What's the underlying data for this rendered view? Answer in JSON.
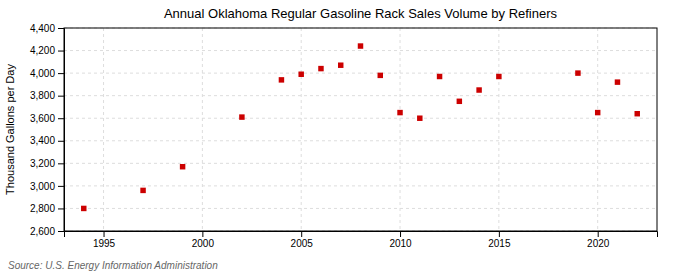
{
  "chart_data": {
    "type": "scatter",
    "title": "Annual Oklahoma Regular Gasoline Rack Sales Volume by Refiners",
    "ylabel": "Thousand Gallons per Day",
    "annotation": "Source: U.S. Energy Information Administration",
    "x": [
      1994,
      1997,
      1999,
      2002,
      2004,
      2005,
      2006,
      2007,
      2008,
      2009,
      2010,
      2011,
      2012,
      2013,
      2014,
      2015,
      2019,
      2020,
      2021,
      2022
    ],
    "values": [
      2800,
      2960,
      3170,
      3610,
      3940,
      3990,
      4040,
      4070,
      4240,
      3980,
      3650,
      3600,
      3970,
      3750,
      3850,
      3970,
      4000,
      3650,
      3920,
      3640
    ],
    "color": "#cc0000",
    "marker": "square",
    "xlim": [
      1993,
      2023
    ],
    "ylim": [
      2600,
      4400
    ],
    "xticks": [
      1995,
      2000,
      2005,
      2010,
      2015,
      2020
    ],
    "yticks": [
      {
        "value": 2600,
        "label": "2,600"
      },
      {
        "value": 2800,
        "label": "2,800"
      },
      {
        "value": 3000,
        "label": "3,000"
      },
      {
        "value": 3200,
        "label": "3,200"
      },
      {
        "value": 3400,
        "label": "3,400"
      },
      {
        "value": 3600,
        "label": "3,600"
      },
      {
        "value": 3800,
        "label": "3,800"
      },
      {
        "value": 4000,
        "label": "4,000"
      },
      {
        "value": 4200,
        "label": "4,200"
      },
      {
        "value": 4400,
        "label": "4,400"
      }
    ],
    "grid": true
  }
}
